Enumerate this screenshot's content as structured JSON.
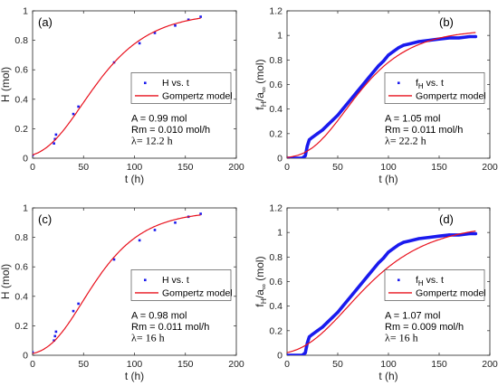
{
  "chart_data": [
    {
      "type": "scatter",
      "panel_label": "(a)",
      "xlabel": "t (h)",
      "ylabel": "H (mol)",
      "xlim": [
        0,
        200
      ],
      "ylim": [
        0,
        1
      ],
      "xticks": [
        "0",
        "50",
        "100",
        "150",
        "200"
      ],
      "yticks": [
        "0",
        "0.2",
        "0.4",
        "0.6",
        "0.8",
        "1"
      ],
      "grid": false,
      "legend_position": "center-right",
      "series": [
        {
          "name": "H vs. t",
          "kind": "points",
          "color": "#1a1aee",
          "x": [
            0,
            21,
            22,
            23,
            40,
            45,
            80,
            105,
            120,
            140,
            153,
            165
          ],
          "y": [
            0.02,
            0.1,
            0.13,
            0.16,
            0.3,
            0.35,
            0.65,
            0.78,
            0.85,
            0.9,
            0.94,
            0.96
          ]
        },
        {
          "name": "Gompertz model",
          "kind": "gompertz",
          "color": "#e8101c",
          "A": 0.99,
          "Rm": 0.01,
          "lambda": 12.2,
          "x_range": [
            0,
            165
          ]
        }
      ],
      "annotations": [
        "A = 0.99 mol",
        "Rm = 0.010 mol/h",
        "λ= 12.2 h"
      ]
    },
    {
      "type": "scatter",
      "panel_label": "(b)",
      "xlabel": "t (h)",
      "ylabel": "f",
      "ylabel_sub_h": "H",
      "ylabel_mid": "/a",
      "ylabel_sub_inf": "∞",
      "ylabel_tail": " (mol)",
      "xlim": [
        0,
        200
      ],
      "ylim": [
        0,
        1.2
      ],
      "xticks": [
        "0",
        "50",
        "100",
        "150",
        "200"
      ],
      "yticks": [
        "0",
        "0.2",
        "0.4",
        "0.6",
        "0.8",
        "1",
        "1.2"
      ],
      "grid": false,
      "legend_position": "center-right",
      "series": [
        {
          "name_main": "f",
          "name_sub": "H",
          "name_tail": " vs. t",
          "kind": "dense",
          "color": "#1a1aee",
          "x": [
            0,
            15,
            18,
            20,
            22,
            25,
            30,
            35,
            40,
            45,
            50,
            55,
            60,
            65,
            70,
            75,
            80,
            85,
            90,
            95,
            100,
            105,
            110,
            115,
            120,
            130,
            140,
            150,
            160,
            170,
            180,
            186
          ],
          "y": [
            0,
            0,
            0.02,
            0.1,
            0.15,
            0.17,
            0.2,
            0.23,
            0.27,
            0.31,
            0.35,
            0.4,
            0.45,
            0.5,
            0.55,
            0.6,
            0.65,
            0.7,
            0.75,
            0.79,
            0.84,
            0.87,
            0.9,
            0.92,
            0.93,
            0.95,
            0.96,
            0.97,
            0.98,
            0.98,
            0.99,
            0.99
          ]
        },
        {
          "name": "Gompertz model",
          "kind": "gompertz",
          "color": "#e8101c",
          "A": 1.05,
          "Rm": 0.011,
          "lambda": 22.2,
          "x_range": [
            0,
            186
          ]
        }
      ],
      "annotations": [
        "A = 1.05 mol",
        "Rm = 0.011 mol/h",
        "λ= 22.2 h"
      ]
    },
    {
      "type": "scatter",
      "panel_label": "(c)",
      "xlabel": "t (h)",
      "ylabel": "H (mol)",
      "xlim": [
        0,
        200
      ],
      "ylim": [
        0,
        1
      ],
      "xticks": [
        "0",
        "50",
        "100",
        "150",
        "200"
      ],
      "yticks": [
        "0",
        "0.2",
        "0.4",
        "0.6",
        "0.8",
        "1"
      ],
      "grid": false,
      "legend_position": "center-right",
      "series": [
        {
          "name": "H vs. t",
          "kind": "points",
          "color": "#1a1aee",
          "x": [
            0,
            21,
            22,
            23,
            40,
            45,
            80,
            105,
            120,
            140,
            153,
            165
          ],
          "y": [
            0.02,
            0.1,
            0.13,
            0.16,
            0.3,
            0.35,
            0.65,
            0.78,
            0.85,
            0.9,
            0.94,
            0.96
          ]
        },
        {
          "name": "Gompertz model",
          "kind": "gompertz",
          "color": "#e8101c",
          "A": 0.98,
          "Rm": 0.011,
          "lambda": 16,
          "x_range": [
            0,
            165
          ]
        }
      ],
      "annotations": [
        "A = 0.98 mol",
        "Rm = 0.011 mol/h",
        "λ= 16 h"
      ]
    },
    {
      "type": "scatter",
      "panel_label": "(d)",
      "xlabel": "t (h)",
      "ylabel": "f",
      "ylabel_sub_h": "H",
      "ylabel_mid": "/a",
      "ylabel_sub_inf": "∞",
      "ylabel_tail": " (mol)",
      "xlim": [
        0,
        200
      ],
      "ylim": [
        0,
        1.2
      ],
      "xticks": [
        "0",
        "50",
        "100",
        "150",
        "200"
      ],
      "yticks": [
        "0",
        "0.2",
        "0.4",
        "0.6",
        "0.8",
        "1",
        "1.2"
      ],
      "grid": false,
      "legend_position": "center-right",
      "series": [
        {
          "name_main": "f",
          "name_sub": "H",
          "name_tail": " vs. t",
          "kind": "dense",
          "color": "#1a1aee",
          "x": [
            0,
            15,
            18,
            20,
            22,
            25,
            30,
            35,
            40,
            45,
            50,
            55,
            60,
            65,
            70,
            75,
            80,
            85,
            90,
            95,
            100,
            105,
            110,
            115,
            120,
            130,
            140,
            150,
            160,
            170,
            180,
            186
          ],
          "y": [
            0,
            0,
            0.02,
            0.1,
            0.15,
            0.17,
            0.2,
            0.23,
            0.27,
            0.31,
            0.35,
            0.4,
            0.45,
            0.5,
            0.55,
            0.6,
            0.65,
            0.7,
            0.75,
            0.79,
            0.84,
            0.87,
            0.9,
            0.92,
            0.93,
            0.95,
            0.96,
            0.97,
            0.98,
            0.98,
            0.99,
            0.99
          ]
        },
        {
          "name": "Gompertz model",
          "kind": "gompertz",
          "color": "#e8101c",
          "A": 1.07,
          "Rm": 0.009,
          "lambda": 16,
          "x_range": [
            0,
            186
          ]
        }
      ],
      "annotations": [
        "A = 1.07 mol",
        "Rm = 0.009 mol/h",
        "λ= 16 h"
      ]
    }
  ]
}
